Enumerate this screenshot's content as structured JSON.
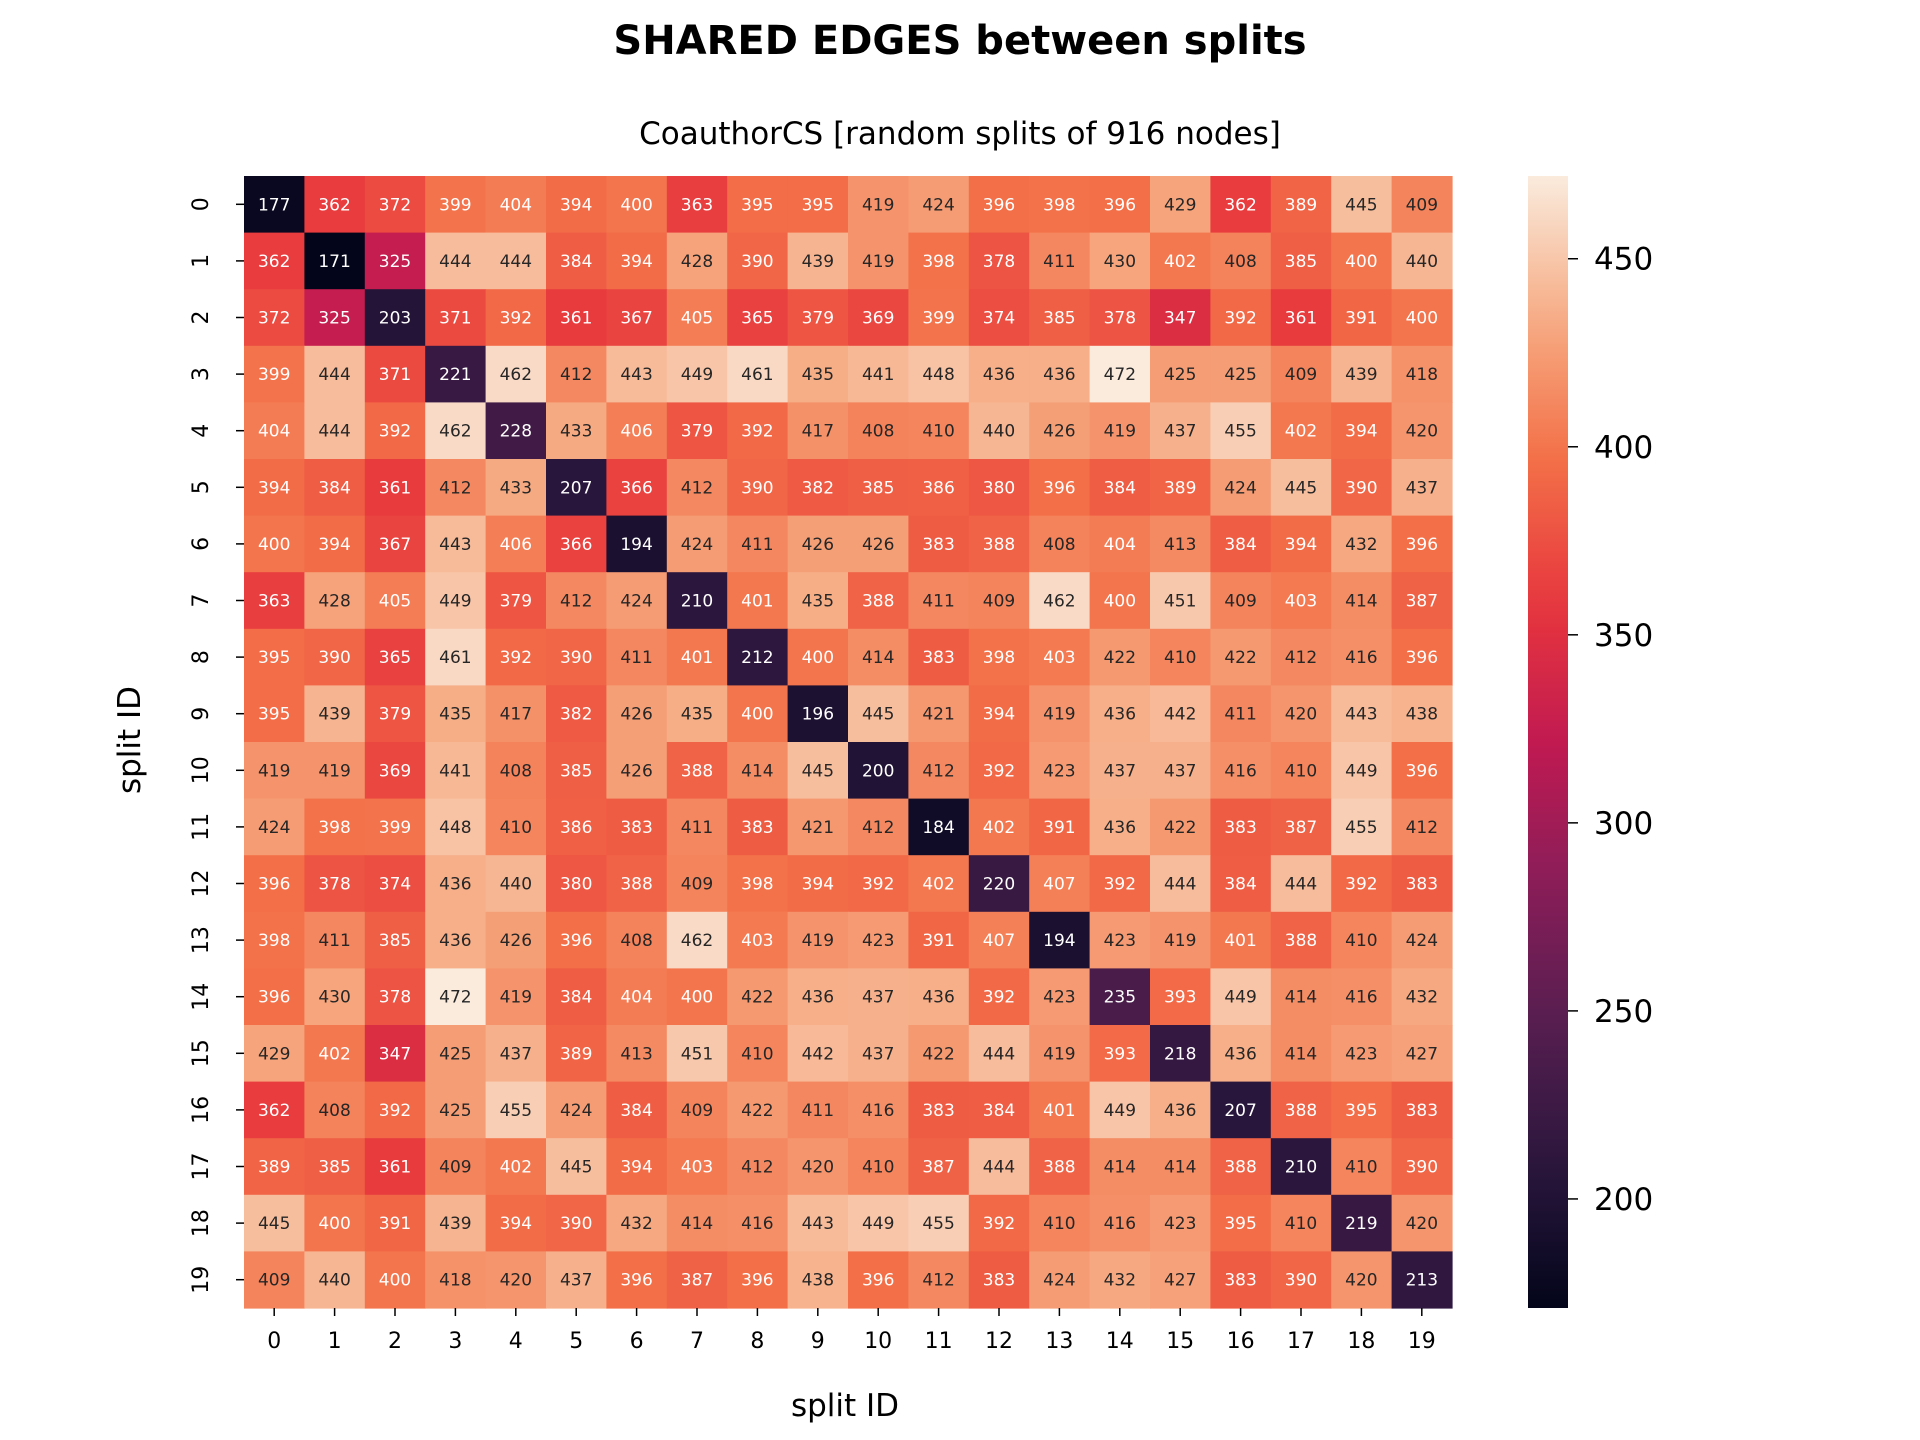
{
  "chart_data": {
    "type": "heatmap",
    "title": "SHARED EDGES between splits",
    "subtitle": "CoauthorCS [random splits of 916 nodes]",
    "xlabel": "split ID",
    "ylabel": "split ID",
    "x_ticks": [
      "0",
      "1",
      "2",
      "3",
      "4",
      "5",
      "6",
      "7",
      "8",
      "9",
      "10",
      "11",
      "12",
      "13",
      "14",
      "15",
      "16",
      "17",
      "18",
      "19"
    ],
    "y_ticks": [
      "0",
      "1",
      "2",
      "3",
      "4",
      "5",
      "6",
      "7",
      "8",
      "9",
      "10",
      "11",
      "12",
      "13",
      "14",
      "15",
      "16",
      "17",
      "18",
      "19"
    ],
    "values": [
      [
        177,
        362,
        372,
        399,
        404,
        394,
        400,
        363,
        395,
        395,
        419,
        424,
        396,
        398,
        396,
        429,
        362,
        389,
        445,
        409
      ],
      [
        362,
        171,
        325,
        444,
        444,
        384,
        394,
        428,
        390,
        439,
        419,
        398,
        378,
        411,
        430,
        402,
        408,
        385,
        400,
        440
      ],
      [
        372,
        325,
        203,
        371,
        392,
        361,
        367,
        405,
        365,
        379,
        369,
        399,
        374,
        385,
        378,
        347,
        392,
        361,
        391,
        400
      ],
      [
        399,
        444,
        371,
        221,
        462,
        412,
        443,
        449,
        461,
        435,
        441,
        448,
        436,
        436,
        472,
        425,
        425,
        409,
        439,
        418
      ],
      [
        404,
        444,
        392,
        462,
        228,
        433,
        406,
        379,
        392,
        417,
        408,
        410,
        440,
        426,
        419,
        437,
        455,
        402,
        394,
        420
      ],
      [
        394,
        384,
        361,
        412,
        433,
        207,
        366,
        412,
        390,
        382,
        385,
        386,
        380,
        396,
        384,
        389,
        424,
        445,
        390,
        437
      ],
      [
        400,
        394,
        367,
        443,
        406,
        366,
        194,
        424,
        411,
        426,
        426,
        383,
        388,
        408,
        404,
        413,
        384,
        394,
        432,
        396
      ],
      [
        363,
        428,
        405,
        449,
        379,
        412,
        424,
        210,
        401,
        435,
        388,
        411,
        409,
        462,
        400,
        451,
        409,
        403,
        414,
        387
      ],
      [
        395,
        390,
        365,
        461,
        392,
        390,
        411,
        401,
        212,
        400,
        414,
        383,
        398,
        403,
        422,
        410,
        422,
        412,
        416,
        396
      ],
      [
        395,
        439,
        379,
        435,
        417,
        382,
        426,
        435,
        400,
        196,
        445,
        421,
        394,
        419,
        436,
        442,
        411,
        420,
        443,
        438
      ],
      [
        419,
        419,
        369,
        441,
        408,
        385,
        426,
        388,
        414,
        445,
        200,
        412,
        392,
        423,
        437,
        437,
        416,
        410,
        449,
        396
      ],
      [
        424,
        398,
        399,
        448,
        410,
        386,
        383,
        411,
        383,
        421,
        412,
        184,
        402,
        391,
        436,
        422,
        383,
        387,
        455,
        412
      ],
      [
        396,
        378,
        374,
        436,
        440,
        380,
        388,
        409,
        398,
        394,
        392,
        402,
        220,
        407,
        392,
        444,
        384,
        444,
        392,
        383
      ],
      [
        398,
        411,
        385,
        436,
        426,
        396,
        408,
        462,
        403,
        419,
        423,
        391,
        407,
        194,
        423,
        419,
        401,
        388,
        410,
        424
      ],
      [
        396,
        430,
        378,
        472,
        419,
        384,
        404,
        400,
        422,
        436,
        437,
        436,
        392,
        423,
        235,
        393,
        449,
        414,
        416,
        432
      ],
      [
        429,
        402,
        347,
        425,
        437,
        389,
        413,
        451,
        410,
        442,
        437,
        422,
        444,
        419,
        393,
        218,
        436,
        414,
        423,
        427
      ],
      [
        362,
        408,
        392,
        425,
        455,
        424,
        384,
        409,
        422,
        411,
        416,
        383,
        384,
        401,
        449,
        436,
        207,
        388,
        395,
        383
      ],
      [
        389,
        385,
        361,
        409,
        402,
        445,
        394,
        403,
        412,
        420,
        410,
        387,
        444,
        388,
        414,
        414,
        388,
        210,
        410,
        390
      ],
      [
        445,
        400,
        391,
        439,
        394,
        390,
        432,
        414,
        416,
        443,
        449,
        455,
        392,
        410,
        416,
        423,
        395,
        410,
        219,
        420
      ],
      [
        409,
        440,
        400,
        418,
        420,
        437,
        396,
        387,
        396,
        438,
        396,
        412,
        383,
        424,
        432,
        427,
        383,
        390,
        420,
        213
      ]
    ],
    "colorbar": {
      "vmin": 171,
      "vmax": 472,
      "ticks": [
        200,
        250,
        300,
        350,
        400,
        450
      ],
      "colormap": "rocket"
    },
    "grid": false
  }
}
